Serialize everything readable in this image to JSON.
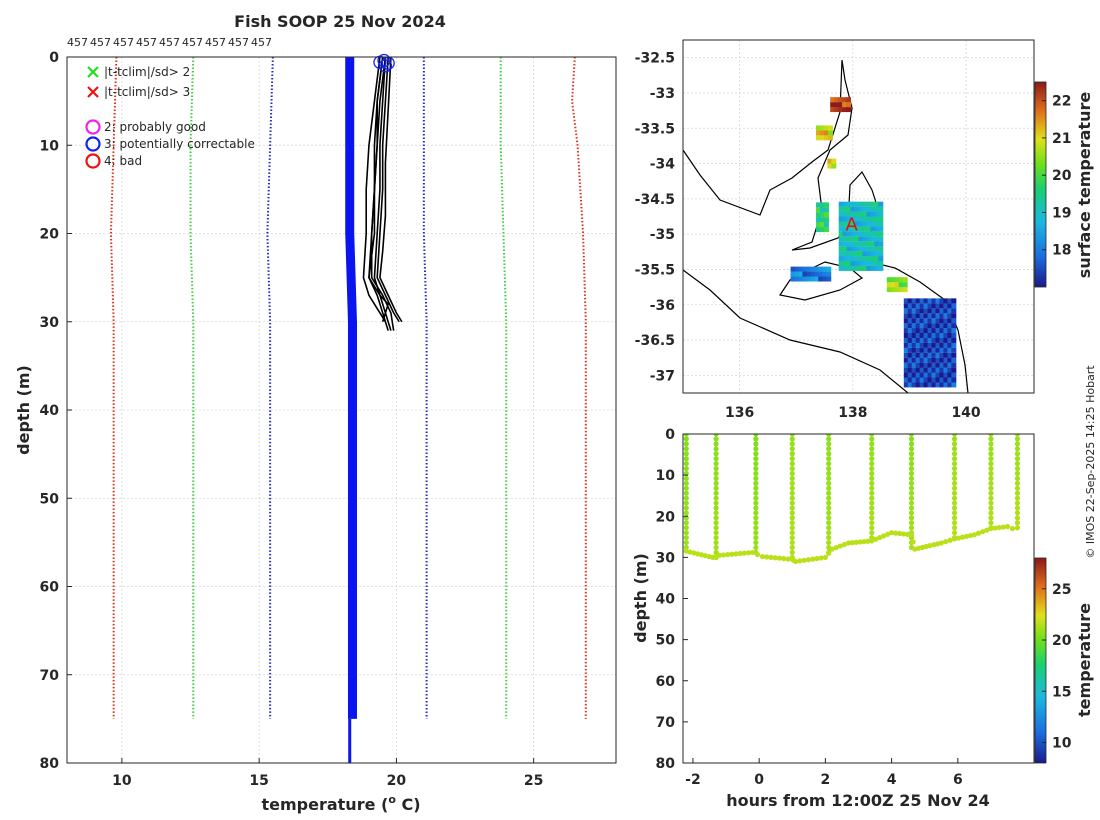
{
  "chart_data": [
    {
      "panel": "profile",
      "type": "line",
      "title": "Fish SOOP 25 Nov 2024",
      "top_labels": [
        "457",
        "457",
        "457",
        "457",
        "457",
        "457",
        "457",
        "457",
        "457"
      ],
      "xlabel": "temperature (o C)",
      "xlabel_parts": {
        "main": "temperature (",
        "sup": "o",
        "tail": " C)"
      },
      "ylabel": "depth (m)",
      "xlim": [
        8,
        28
      ],
      "ylim": [
        0,
        80
      ],
      "xticks": [
        "10",
        "15",
        "20",
        "25"
      ],
      "yticks": [
        "0",
        "10",
        "20",
        "30",
        "40",
        "50",
        "60",
        "70",
        "80"
      ],
      "legend": [
        {
          "label": "|t-tclim|/sd> 2",
          "marker": "x",
          "color": "#22dd22"
        },
        {
          "label": "|t-tclim|/sd> 3",
          "marker": "x",
          "color": "#ee1111"
        },
        {
          "label": "2: probably good",
          "marker": "circle",
          "color": "#ee22ee"
        },
        {
          "label": "3: potentially correctable",
          "marker": "circle",
          "color": "#1122ee"
        },
        {
          "label": "4: bad",
          "marker": "circle",
          "color": "#ee1111"
        }
      ],
      "series": [
        {
          "name": "clim_minus_3sd",
          "color": "#e0301e",
          "depth": [
            0,
            10,
            20,
            30,
            75
          ],
          "temp": [
            9.8,
            9.7,
            9.6,
            9.7,
            9.7
          ]
        },
        {
          "name": "clim_minus_2sd",
          "color": "#3fcf3f",
          "depth": [
            0,
            10,
            20,
            30,
            75
          ],
          "temp": [
            12.6,
            12.5,
            12.5,
            12.6,
            12.6
          ]
        },
        {
          "name": "clim_minus_1sd",
          "color": "#2a2acf",
          "depth": [
            0,
            10,
            20,
            30,
            75
          ],
          "temp": [
            15.5,
            15.4,
            15.3,
            15.4,
            15.4
          ]
        },
        {
          "name": "clim_plus_1sd",
          "color": "#2a2acf",
          "depth": [
            0,
            10,
            20,
            30,
            75
          ],
          "temp": [
            21.0,
            21.0,
            21.0,
            21.1,
            21.1
          ]
        },
        {
          "name": "clim_plus_2sd",
          "color": "#3fcf3f",
          "depth": [
            0,
            10,
            20,
            30,
            75
          ],
          "temp": [
            23.8,
            23.8,
            23.9,
            24.0,
            24.0
          ]
        },
        {
          "name": "clim_plus_3sd",
          "color": "#e0301e",
          "depth": [
            0,
            5,
            10,
            20,
            30,
            75
          ],
          "temp": [
            26.5,
            26.4,
            26.6,
            26.8,
            26.9,
            26.9
          ]
        },
        {
          "name": "climatology_mean",
          "color": "#0a14ee",
          "depth": [
            0,
            10,
            20,
            30,
            75
          ],
          "temp": [
            18.3,
            18.3,
            18.3,
            18.4,
            18.4
          ]
        },
        {
          "name": "climatology_deep",
          "color": "#0a14ee",
          "depth": [
            75,
            80
          ],
          "temp": [
            18.3,
            18.3
          ]
        }
      ],
      "profiles": [
        {
          "depth": [
            0,
            5,
            10,
            15,
            20,
            25,
            27,
            29,
            31
          ],
          "temp": [
            19.6,
            19.5,
            19.4,
            19.4,
            19.3,
            19.2,
            19.4,
            19.6,
            19.8
          ]
        },
        {
          "depth": [
            0,
            5,
            10,
            15,
            20,
            25,
            27,
            29,
            31
          ],
          "temp": [
            19.5,
            19.3,
            19.2,
            19.2,
            19.1,
            19.0,
            19.3,
            19.5,
            19.7
          ]
        },
        {
          "depth": [
            0,
            5,
            10,
            15,
            20,
            25,
            27,
            29,
            30
          ],
          "temp": [
            19.7,
            19.6,
            19.5,
            19.5,
            19.4,
            19.3,
            19.6,
            19.9,
            20.1
          ]
        },
        {
          "depth": [
            0,
            5,
            10,
            15,
            20,
            25,
            27,
            29,
            30
          ],
          "temp": [
            19.4,
            19.2,
            19.0,
            18.9,
            18.9,
            18.8,
            19.0,
            19.4,
            19.6
          ]
        },
        {
          "depth": [
            0,
            6,
            12,
            18,
            22,
            25,
            27,
            29,
            30
          ],
          "temp": [
            19.8,
            19.7,
            19.6,
            19.6,
            19.5,
            19.4,
            19.7,
            20.0,
            20.2
          ]
        },
        {
          "depth": [
            0,
            5,
            10,
            15,
            20,
            25,
            27,
            29,
            31
          ],
          "temp": [
            19.6,
            19.4,
            19.3,
            19.2,
            19.1,
            19.1,
            19.5,
            19.8,
            19.9
          ]
        },
        {
          "depth": [
            0,
            5,
            10,
            15,
            20,
            25,
            27,
            28,
            30
          ],
          "temp": [
            19.5,
            19.3,
            19.3,
            19.2,
            19.2,
            19.0,
            19.4,
            19.7,
            19.5
          ]
        }
      ],
      "flag_circles": [
        {
          "temp": 19.4,
          "depth": 0.6
        },
        {
          "temp": 19.55,
          "depth": 0.4
        },
        {
          "temp": 19.7,
          "depth": 0.7
        },
        {
          "temp": 19.6,
          "depth": 1.0
        }
      ]
    },
    {
      "panel": "map",
      "type": "heatmap",
      "xlim": [
        135.0,
        141.2
      ],
      "ylim": [
        -37.25,
        -32.25
      ],
      "xticks": [
        "136",
        "138",
        "140"
      ],
      "yticks": [
        "-32.5",
        "-33",
        "-33.5",
        "-34",
        "-34.5",
        "-35",
        "-35.5",
        "-36",
        "-36.5",
        "-37"
      ],
      "colorbar_label": "surface temperature",
      "colorbar_ticks": [
        "22",
        "21",
        "20",
        "19",
        "18"
      ],
      "clim": [
        17.0,
        22.5
      ],
      "marker_label": "A",
      "marker": {
        "lon": 137.98,
        "lat": -34.85
      },
      "clusters": [
        {
          "name": "upper spencer gulf",
          "lon": [
            137.6,
            137.9
          ],
          "lat": [
            -33.2,
            -33.0
          ],
          "temp": 22.2
        },
        {
          "name": "spencer mid",
          "lon": [
            137.35,
            137.6
          ],
          "lat": [
            -33.6,
            -33.4
          ],
          "temp": 21.0
        },
        {
          "name": "spencer west",
          "lon": [
            137.55,
            137.65
          ],
          "lat": [
            -34.0,
            -33.9
          ],
          "temp": 21.0
        },
        {
          "name": "spencer south",
          "lon": [
            137.35,
            137.55
          ],
          "lat": [
            -34.9,
            -34.5
          ],
          "temp": 19.6
        },
        {
          "name": "gulf st vincent",
          "lon": [
            137.75,
            138.45
          ],
          "lat": [
            -35.45,
            -34.5
          ],
          "temp": 19.0
        },
        {
          "name": "investigator strait",
          "lon": [
            136.9,
            137.55
          ],
          "lat": [
            -35.6,
            -35.45
          ],
          "temp": 18.0
        },
        {
          "name": "coorong coast",
          "lon": [
            138.9,
            139.8
          ],
          "lat": [
            -37.1,
            -35.85
          ],
          "temp": 17.4
        },
        {
          "name": "murray mouth",
          "lon": [
            138.6,
            138.9
          ],
          "lat": [
            -35.75,
            -35.55
          ],
          "temp": 20.5
        }
      ]
    },
    {
      "panel": "time_depth",
      "type": "scatter",
      "xlabel": "hours from 12:00Z 25 Nov 24",
      "ylabel": "depth (m)",
      "xlim": [
        -2.3,
        8.3
      ],
      "ylim": [
        0,
        80
      ],
      "xticks": [
        "-2",
        "0",
        "2",
        "4",
        "6"
      ],
      "yticks": [
        "0",
        "10",
        "20",
        "30",
        "40",
        "50",
        "60",
        "70",
        "80"
      ],
      "colorbar_label": "temperature",
      "colorbar_ticks": [
        "25",
        "20",
        "15",
        "10"
      ],
      "clim": [
        8,
        28
      ],
      "bottom_trace": [
        {
          "h": -2.2,
          "d": 28.5
        },
        {
          "h": -1.4,
          "d": 30.0
        },
        {
          "h": -1.2,
          "d": 29.5
        },
        {
          "h": -0.2,
          "d": 28.8
        },
        {
          "h": 0.1,
          "d": 29.8
        },
        {
          "h": 1.0,
          "d": 30.5
        },
        {
          "h": 1.1,
          "d": 31.0
        },
        {
          "h": 2.0,
          "d": 30.0
        },
        {
          "h": 2.2,
          "d": 28.0
        },
        {
          "h": 2.7,
          "d": 26.5
        },
        {
          "h": 3.4,
          "d": 26.0
        },
        {
          "h": 4.0,
          "d": 24.0
        },
        {
          "h": 4.6,
          "d": 24.5
        },
        {
          "h": 4.7,
          "d": 28.0
        },
        {
          "h": 5.5,
          "d": 26.5
        },
        {
          "h": 5.9,
          "d": 25.5
        },
        {
          "h": 6.5,
          "d": 24.5
        },
        {
          "h": 7.0,
          "d": 23.0
        },
        {
          "h": 7.5,
          "d": 22.5
        },
        {
          "h": 7.8,
          "d": 23.5
        }
      ],
      "casts": [
        {
          "h": -2.2,
          "bottom": 28.5,
          "temp": 20.4
        },
        {
          "h": -1.3,
          "bottom": 30.0,
          "temp": 20.5
        },
        {
          "h": -0.1,
          "bottom": 29.5,
          "temp": 20.3
        },
        {
          "h": 1.0,
          "bottom": 31.0,
          "temp": 20.8
        },
        {
          "h": 2.1,
          "bottom": 29.5,
          "temp": 20.6
        },
        {
          "h": 3.4,
          "bottom": 26.0,
          "temp": 20.7
        },
        {
          "h": 4.6,
          "bottom": 28.0,
          "temp": 20.5
        },
        {
          "h": 5.9,
          "bottom": 25.5,
          "temp": 20.9
        },
        {
          "h": 7.0,
          "bottom": 23.0,
          "temp": 20.8
        },
        {
          "h": 7.8,
          "bottom": 23.5,
          "temp": 20.9
        }
      ]
    }
  ],
  "copyright": "© IMOS 22-Sep-2025 14:25 Hobart"
}
